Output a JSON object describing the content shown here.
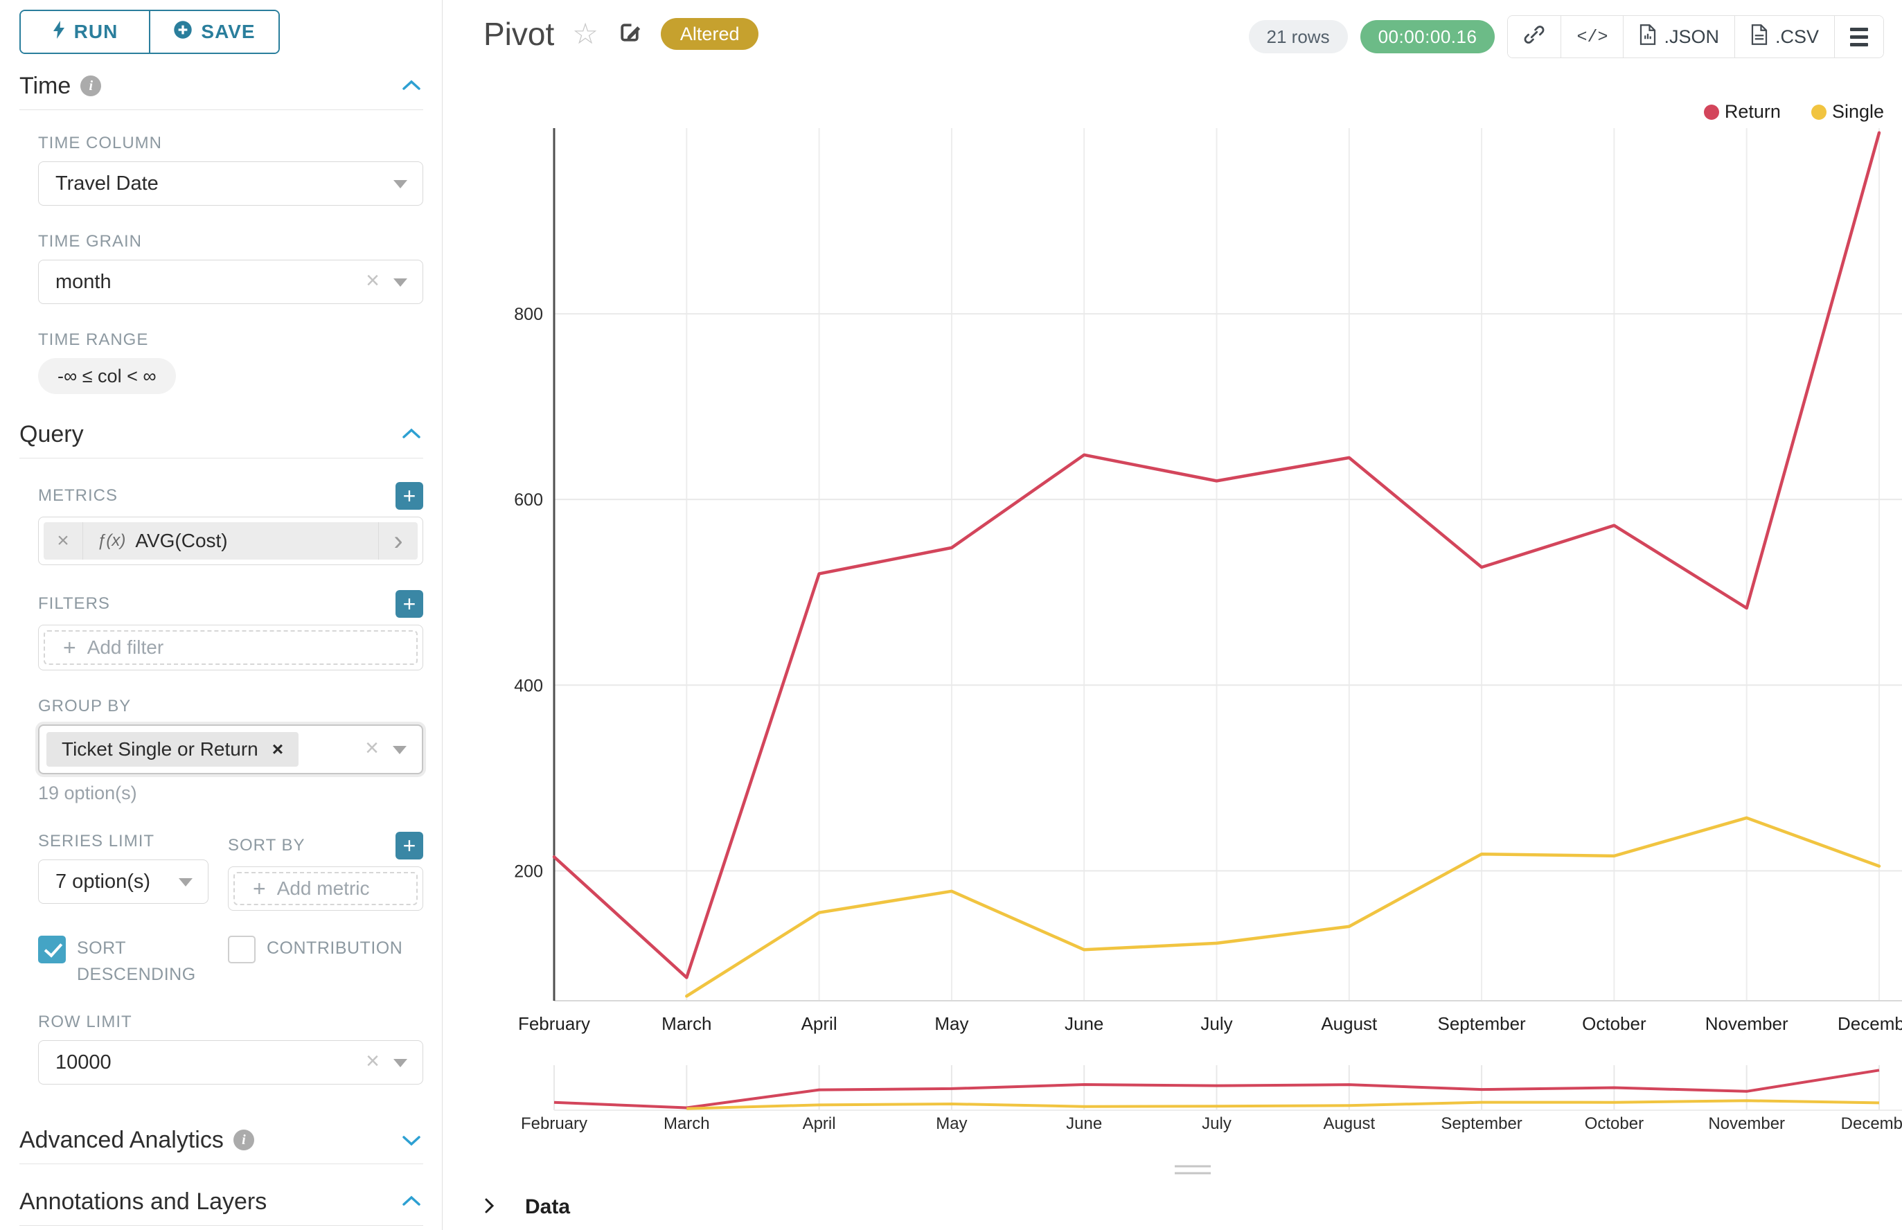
{
  "sidebar": {
    "run_label": "RUN",
    "save_label": "SAVE",
    "sections": {
      "time": {
        "title": "Time",
        "time_column": {
          "label": "TIME COLUMN",
          "value": "Travel Date"
        },
        "time_grain": {
          "label": "TIME GRAIN",
          "value": "month"
        },
        "time_range": {
          "label": "TIME RANGE",
          "value": "-∞ ≤ col < ∞"
        }
      },
      "query": {
        "title": "Query",
        "metrics": {
          "label": "METRICS",
          "fx": "ƒ(x)",
          "value": "AVG(Cost)"
        },
        "filters": {
          "label": "FILTERS",
          "placeholder": "Add filter"
        },
        "group_by": {
          "label": "GROUP BY",
          "tag": "Ticket Single or Return",
          "hint": "19 option(s)"
        },
        "series_limit": {
          "label": "SERIES LIMIT",
          "value": "7 option(s)"
        },
        "sort_by": {
          "label": "SORT BY",
          "placeholder": "Add metric"
        },
        "sort_descending": {
          "label": "SORT DESCENDING",
          "checked": true
        },
        "contribution": {
          "label": "CONTRIBUTION",
          "checked": false
        },
        "row_limit": {
          "label": "ROW LIMIT",
          "value": "10000"
        }
      },
      "advanced": {
        "title": "Advanced Analytics"
      },
      "annotations": {
        "title": "Annotations and Layers"
      }
    }
  },
  "header": {
    "title": "Pivot",
    "badge": "Altered",
    "rows": "21 rows",
    "timer": "00:00:00.16",
    "toolbar": {
      "code": "</>",
      "json": ".JSON",
      "csv": ".CSV"
    }
  },
  "icons": {
    "star": "☆"
  },
  "data_panel": {
    "label": "Data"
  },
  "chart_data": {
    "type": "line",
    "title": "Pivot",
    "categories": [
      "February",
      "March",
      "April",
      "May",
      "June",
      "July",
      "August",
      "September",
      "October",
      "November",
      "December"
    ],
    "series": [
      {
        "name": "Return",
        "color": "#D3455B",
        "values": [
          215,
          85,
          520,
          548,
          648,
          620,
          645,
          527,
          572,
          483,
          995
        ]
      },
      {
        "name": "Single",
        "color": "#F1C440",
        "values": [
          null,
          65,
          155,
          178,
          115,
          122,
          140,
          218,
          216,
          257,
          205
        ]
      }
    ],
    "xlabel": "",
    "ylabel": "",
    "ylim": [
      60,
      1000
    ],
    "yticks": [
      200,
      400,
      600,
      800
    ],
    "grid": true,
    "legend_position": "top-right",
    "mini_map": true
  }
}
